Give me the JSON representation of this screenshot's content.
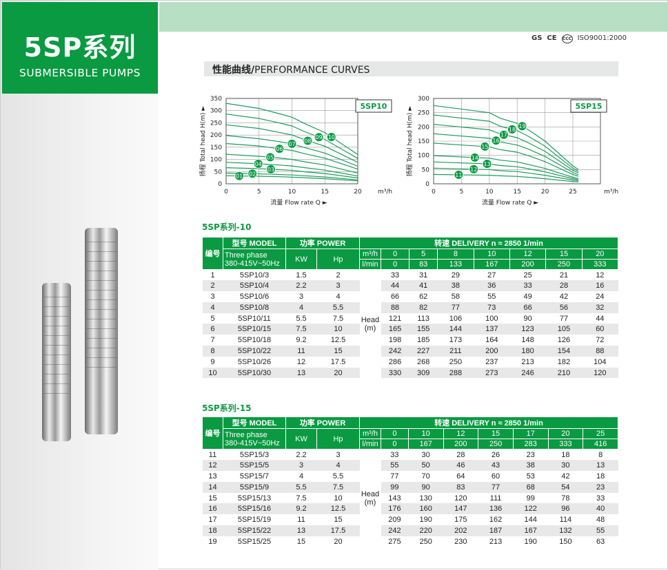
{
  "brand": {
    "title": "5SP系列",
    "subtitle": "SUBMERSIBLE PUMPS"
  },
  "certifications": {
    "marks": [
      "GS",
      "CE",
      "CCC"
    ],
    "iso": "ISO9001:2000"
  },
  "section_header": {
    "cn": "性能曲线/",
    "en": "PERFORMANCE CURVES"
  },
  "colors": {
    "green": "#0a9a42",
    "band": "#b6dfc4",
    "curve": "#1c9a5a"
  },
  "chart_data": [
    {
      "type": "line",
      "title": "5SP10",
      "xlabel": "流量 Flow rate Q ►",
      "ylabel": "扬程 Total head H(m) ►",
      "x_unit": "m³/h",
      "xlim": [
        0,
        20
      ],
      "ylim": [
        0,
        350
      ],
      "xticks": [
        0,
        5,
        10,
        15,
        20
      ],
      "yticks": [
        0,
        50,
        100,
        150,
        200,
        250,
        300,
        350
      ],
      "grid": true,
      "x": [
        0,
        5,
        8,
        10,
        12,
        15,
        20
      ],
      "series": [
        {
          "name": "01",
          "values": [
            33,
            31,
            29,
            27,
            25,
            21,
            12
          ]
        },
        {
          "name": "02",
          "values": [
            44,
            41,
            38,
            36,
            33,
            28,
            16
          ]
        },
        {
          "name": "03",
          "values": [
            66,
            62,
            58,
            55,
            49,
            42,
            24
          ]
        },
        {
          "name": "04",
          "values": [
            88,
            82,
            77,
            73,
            66,
            56,
            32
          ]
        },
        {
          "name": "05",
          "values": [
            121,
            113,
            106,
            100,
            90,
            77,
            44
          ]
        },
        {
          "name": "06",
          "values": [
            165,
            155,
            144,
            137,
            123,
            105,
            60
          ]
        },
        {
          "name": "07",
          "values": [
            198,
            185,
            173,
            164,
            148,
            126,
            72
          ]
        },
        {
          "name": "08",
          "values": [
            242,
            227,
            211,
            200,
            180,
            154,
            88
          ]
        },
        {
          "name": "09",
          "values": [
            286,
            268,
            250,
            237,
            213,
            182,
            104
          ]
        },
        {
          "name": "10",
          "values": [
            330,
            309,
            288,
            273,
            246,
            210,
            120
          ]
        }
      ]
    },
    {
      "type": "line",
      "title": "5SP15",
      "xlabel": "流量 Flow rate Q ►",
      "ylabel": "扬程 Total head H(m) ►",
      "x_unit": "m³/h",
      "xlim": [
        0,
        25
      ],
      "ylim": [
        0,
        300
      ],
      "xticks": [
        0,
        5,
        10,
        15,
        20,
        25
      ],
      "yticks": [
        0,
        50,
        100,
        150,
        200,
        250,
        300
      ],
      "grid": true,
      "x": [
        0,
        10,
        12,
        15,
        17,
        20,
        25
      ],
      "series": [
        {
          "name": "11",
          "values": [
            33,
            30,
            28,
            26,
            23,
            18,
            8
          ]
        },
        {
          "name": "12",
          "values": [
            55,
            50,
            46,
            43,
            38,
            30,
            13
          ]
        },
        {
          "name": "13",
          "values": [
            77,
            70,
            64,
            60,
            53,
            42,
            18
          ]
        },
        {
          "name": "14",
          "values": [
            99,
            90,
            83,
            77,
            68,
            54,
            23
          ]
        },
        {
          "name": "15",
          "values": [
            143,
            130,
            120,
            111,
            99,
            78,
            33
          ]
        },
        {
          "name": "16",
          "values": [
            176,
            160,
            147,
            136,
            122,
            96,
            40
          ]
        },
        {
          "name": "17",
          "values": [
            209,
            190,
            175,
            162,
            144,
            114,
            48
          ]
        },
        {
          "name": "18",
          "values": [
            242,
            220,
            202,
            187,
            167,
            132,
            55
          ]
        },
        {
          "name": "19",
          "values": [
            275,
            250,
            230,
            213,
            190,
            150,
            63
          ]
        }
      ]
    }
  ],
  "tables": [
    {
      "label": "5SP系列-10",
      "h_no": "编号",
      "h_model": "型号 MODEL",
      "h_power": "功率 POWER",
      "h_delivery": "转速 DELIVERY    n ≈ 2850   1/min",
      "h_phase1": "Three phase",
      "h_phase2": "380-415V~50Hz",
      "h_kw": "KW",
      "h_hp": "Hp",
      "u1": "m³/h",
      "u2": "l/min",
      "head1": "Head",
      "head2": "(m)",
      "m3h": [
        "0",
        "5",
        "8",
        "10",
        "12",
        "15",
        "20"
      ],
      "lmin": [
        "0",
        "83",
        "133",
        "167",
        "200",
        "250",
        "333"
      ],
      "rows": [
        [
          "1",
          "5SP10/3",
          "1.5",
          "2",
          [
            "33",
            "31",
            "29",
            "27",
            "25",
            "21",
            "12"
          ]
        ],
        [
          "2",
          "5SP10/4",
          "2.2",
          "3",
          [
            "44",
            "41",
            "38",
            "36",
            "33",
            "28",
            "16"
          ]
        ],
        [
          "3",
          "5SP10/6",
          "3",
          "4",
          [
            "66",
            "62",
            "58",
            "55",
            "49",
            "42",
            "24"
          ]
        ],
        [
          "4",
          "5SP10/8",
          "4",
          "5.5",
          [
            "88",
            "82",
            "77",
            "73",
            "66",
            "56",
            "32"
          ]
        ],
        [
          "5",
          "5SP10/11",
          "5.5",
          "7.5",
          [
            "121",
            "113",
            "106",
            "100",
            "90",
            "77",
            "44"
          ]
        ],
        [
          "6",
          "5SP10/15",
          "7.5",
          "10",
          [
            "165",
            "155",
            "144",
            "137",
            "123",
            "105",
            "60"
          ]
        ],
        [
          "7",
          "5SP10/18",
          "9.2",
          "12.5",
          [
            "198",
            "185",
            "173",
            "164",
            "148",
            "126",
            "72"
          ]
        ],
        [
          "8",
          "5SP10/22",
          "11",
          "15",
          [
            "242",
            "227",
            "211",
            "200",
            "180",
            "154",
            "88"
          ]
        ],
        [
          "9",
          "5SP10/26",
          "12",
          "17.5",
          [
            "286",
            "268",
            "250",
            "237",
            "213",
            "182",
            "104"
          ]
        ],
        [
          "10",
          "5SP10/30",
          "13",
          "20",
          [
            "330",
            "309",
            "288",
            "273",
            "246",
            "210",
            "120"
          ]
        ]
      ]
    },
    {
      "label": "5SP系列-15",
      "h_no": "编号",
      "h_model": "型号 MODEL",
      "h_power": "功率 POWER",
      "h_delivery": "转速 DELIVERY    n ≈ 2850   1/min",
      "h_phase1": "Three phase",
      "h_phase2": "380-415V~50Hz",
      "h_kw": "KW",
      "h_hp": "Hp",
      "u1": "m³/h",
      "u2": "l/min",
      "head1": "Head",
      "head2": "(m)",
      "m3h": [
        "0",
        "10",
        "12",
        "15",
        "17",
        "20",
        "25"
      ],
      "lmin": [
        "0",
        "167",
        "200",
        "250",
        "283",
        "333",
        "416"
      ],
      "rows": [
        [
          "11",
          "5SP15/3",
          "2.2",
          "3",
          [
            "33",
            "30",
            "28",
            "26",
            "23",
            "18",
            "8"
          ]
        ],
        [
          "12",
          "5SP15/5",
          "3",
          "4",
          [
            "55",
            "50",
            "46",
            "43",
            "38",
            "30",
            "13"
          ]
        ],
        [
          "13",
          "5SP15/7",
          "4",
          "5.5",
          [
            "77",
            "70",
            "64",
            "60",
            "53",
            "42",
            "18"
          ]
        ],
        [
          "14",
          "5SP15/9",
          "5.5",
          "7.5",
          [
            "99",
            "90",
            "83",
            "77",
            "68",
            "54",
            "23"
          ]
        ],
        [
          "15",
          "5SP15/13",
          "7.5",
          "10",
          [
            "143",
            "130",
            "120",
            "111",
            "99",
            "78",
            "33"
          ]
        ],
        [
          "16",
          "5SP15/16",
          "9.2",
          "12.5",
          [
            "176",
            "160",
            "147",
            "136",
            "122",
            "96",
            "40"
          ]
        ],
        [
          "17",
          "5SP15/19",
          "11",
          "15",
          [
            "209",
            "190",
            "175",
            "162",
            "144",
            "114",
            "48"
          ]
        ],
        [
          "18",
          "5SP15/22",
          "13",
          "17.5",
          [
            "242",
            "220",
            "202",
            "187",
            "167",
            "132",
            "55"
          ]
        ],
        [
          "19",
          "5SP15/25",
          "15",
          "20",
          [
            "275",
            "250",
            "230",
            "213",
            "190",
            "150",
            "63"
          ]
        ]
      ]
    }
  ]
}
